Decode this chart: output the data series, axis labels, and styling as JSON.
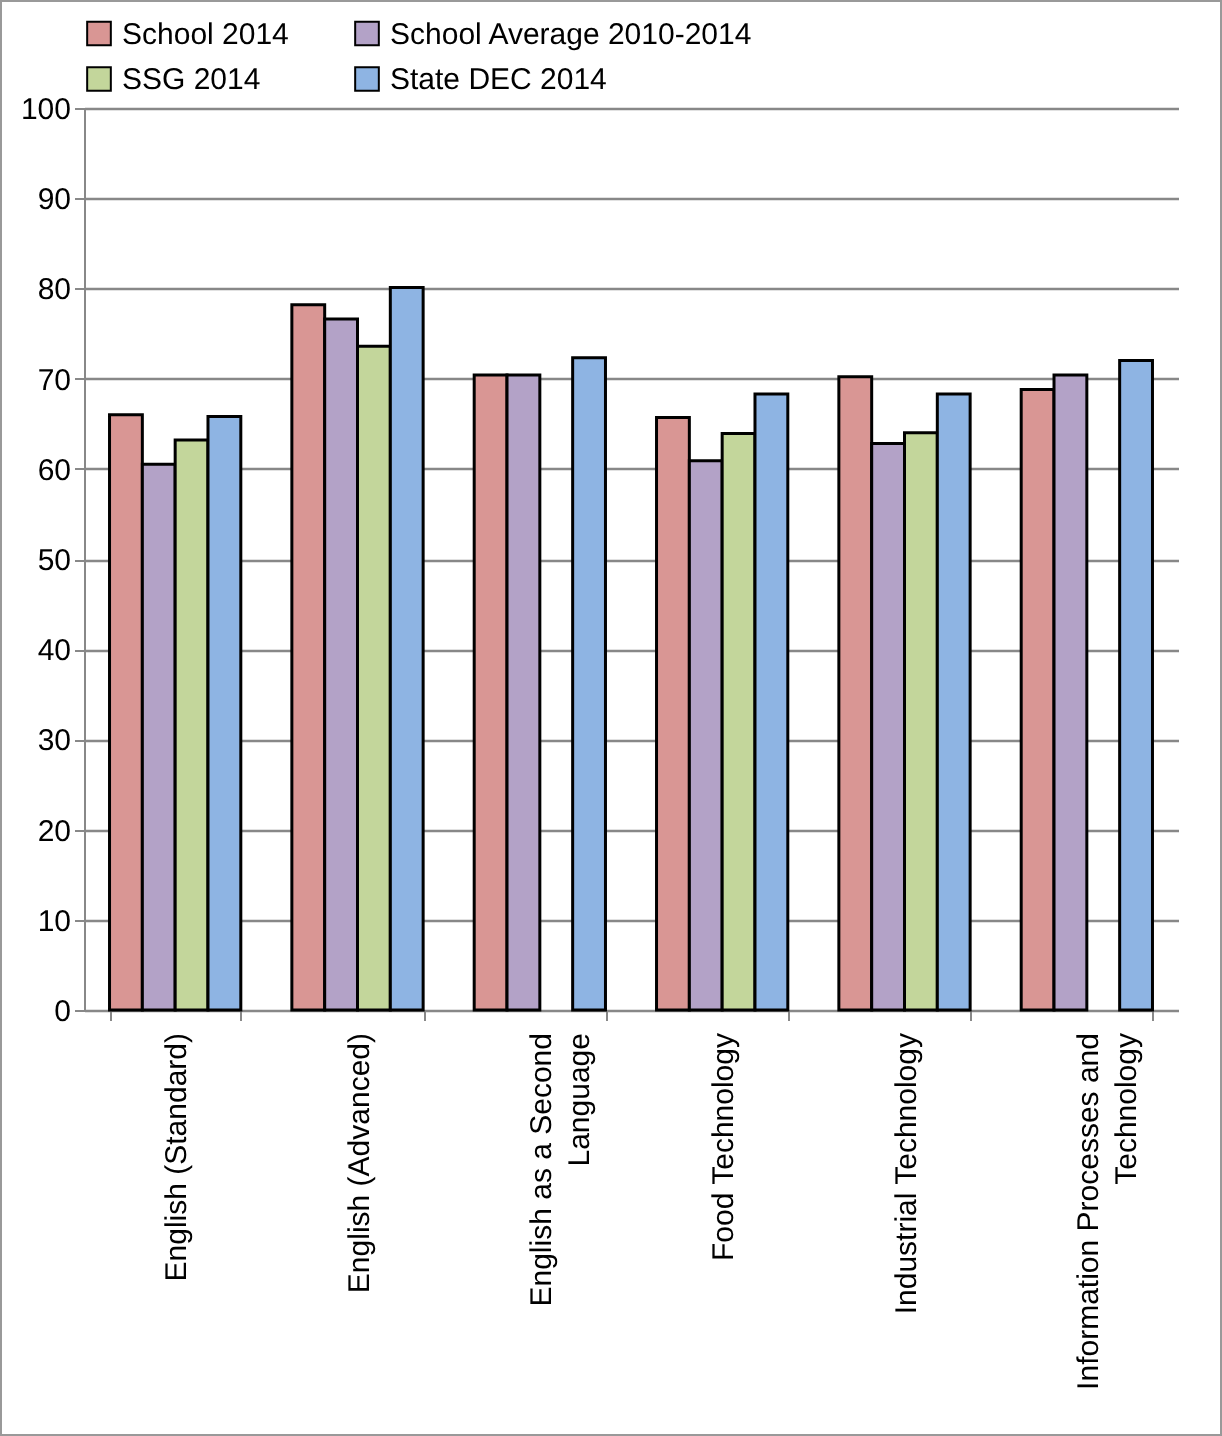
{
  "chart_data": {
    "type": "bar",
    "categories": [
      "English (Standard)",
      "English (Advanced)",
      "English as a Second Language",
      "Food Technology",
      "Industrial Technology",
      "Information Processes and Technology"
    ],
    "series": [
      {
        "name": "School 2014",
        "color": "#d99694",
        "values": [
          66.0,
          78.2,
          70.4,
          65.7,
          70.2,
          68.8
        ]
      },
      {
        "name": "School Average 2010-2014",
        "color": "#b3a2c7",
        "values": [
          60.5,
          76.6,
          70.4,
          60.9,
          62.8,
          70.4
        ]
      },
      {
        "name": "SSG 2014",
        "color": "#c3d69b",
        "values": [
          63.2,
          73.6,
          null,
          63.9,
          64.0,
          null
        ]
      },
      {
        "name": "State DEC 2014",
        "color": "#8eb4e3",
        "values": [
          65.8,
          80.1,
          72.3,
          68.3,
          68.3,
          72.0
        ]
      }
    ],
    "ylim": [
      0,
      100
    ],
    "yticks": [
      0,
      10,
      20,
      30,
      40,
      50,
      60,
      70,
      80,
      90,
      100
    ],
    "grid": "y",
    "legend": "top"
  }
}
